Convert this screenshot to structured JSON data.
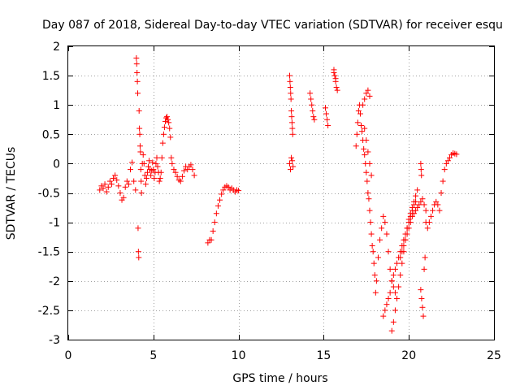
{
  "chart_data": {
    "type": "scatter",
    "title": "Day 087 of 2018, Sidereal Day-to-day VTEC variation (SDTVAR) for receiver esqu",
    "xlabel": "GPS time / hours",
    "ylabel": "SDTVAR / TECUs",
    "xlim": [
      0,
      25
    ],
    "ylim": [
      -3,
      2
    ],
    "xticks": [
      0,
      5,
      10,
      15,
      20,
      25
    ],
    "xtick_labels": [
      "0",
      "5",
      "10",
      "15",
      "20",
      "25"
    ],
    "yticks": [
      2,
      1.5,
      1,
      0.5,
      0,
      -0.5,
      -1,
      -1.5,
      -2,
      -2.5,
      -3
    ],
    "ytick_labels": [
      "2",
      "1.5",
      "1",
      "0.5",
      "0",
      "-0.5",
      "-1",
      "-1.5",
      "-2",
      "-2.5",
      "-3"
    ],
    "grid": true,
    "marker": "+",
    "marker_color": "#ff0000",
    "series": [
      {
        "name": "SDTVAR",
        "x": [
          1.85,
          1.95,
          2.05,
          2.15,
          2.25,
          2.35,
          2.45,
          2.55,
          2.65,
          2.75,
          2.85,
          2.95,
          3.05,
          3.15,
          3.25,
          3.35,
          3.45,
          3.55,
          3.65,
          3.75,
          3.85,
          3.95,
          4.0,
          4.02,
          4.04,
          4.06,
          4.08,
          4.1,
          4.12,
          4.14,
          4.16,
          4.18,
          4.2,
          4.22,
          4.24,
          4.26,
          4.28,
          4.3,
          4.35,
          4.4,
          4.45,
          4.5,
          4.55,
          4.6,
          4.65,
          4.7,
          4.75,
          4.8,
          4.85,
          4.9,
          4.95,
          5.0,
          5.05,
          5.1,
          5.15,
          5.2,
          5.25,
          5.3,
          5.35,
          5.4,
          5.45,
          5.5,
          5.55,
          5.6,
          5.65,
          5.7,
          5.75,
          5.8,
          5.85,
          5.9,
          5.95,
          6.0,
          6.05,
          6.1,
          6.2,
          6.3,
          6.4,
          6.5,
          6.6,
          6.7,
          6.8,
          6.9,
          7.0,
          7.1,
          7.2,
          7.3,
          7.4,
          8.2,
          8.3,
          8.4,
          8.5,
          8.6,
          8.7,
          8.8,
          8.9,
          9.0,
          9.1,
          9.2,
          9.3,
          9.4,
          9.5,
          9.6,
          9.7,
          9.8,
          9.9,
          10.0,
          13.0,
          13.02,
          13.04,
          13.06,
          13.08,
          13.1,
          13.12,
          13.14,
          13.16,
          13.18,
          13.0,
          13.05,
          13.1,
          13.15,
          13.2,
          14.2,
          14.25,
          14.3,
          14.35,
          14.4,
          14.45,
          15.1,
          15.15,
          15.2,
          15.25,
          15.6,
          15.65,
          15.7,
          15.75,
          15.8,
          15.6,
          15.7,
          16.9,
          16.95,
          17.0,
          17.05,
          17.1,
          17.15,
          17.2,
          17.25,
          17.3,
          17.35,
          17.4,
          17.45,
          17.5,
          17.55,
          17.6,
          17.65,
          17.7,
          17.75,
          17.8,
          17.85,
          17.9,
          17.95,
          18.0,
          18.05,
          17.3,
          17.4,
          17.5,
          17.6,
          17.7,
          17.4,
          17.5,
          17.6,
          17.7,
          17.8,
          18.1,
          18.2,
          18.3,
          18.4,
          18.5,
          18.6,
          18.7,
          18.8,
          18.9,
          19.0,
          19.1,
          19.2,
          18.5,
          18.6,
          18.7,
          18.8,
          18.9,
          19.0,
          19.1,
          19.2,
          19.3,
          19.4,
          19.5,
          19.6,
          19.7,
          19.8,
          19.9,
          20.0,
          20.1,
          20.2,
          20.3,
          20.4,
          19.0,
          19.1,
          19.2,
          19.3,
          19.4,
          19.5,
          19.6,
          19.7,
          19.8,
          19.9,
          20.0,
          20.1,
          20.2,
          20.3,
          20.4,
          20.5,
          19.5,
          19.6,
          19.7,
          19.8,
          19.9,
          20.0,
          20.1,
          20.2,
          20.3,
          20.4,
          20.5,
          20.6,
          20.7,
          20.8,
          20.9,
          21.0,
          20.7,
          20.75,
          20.8,
          20.85,
          20.9,
          20.95,
          20.7,
          20.72,
          20.74,
          21.0,
          21.1,
          21.2,
          21.3,
          21.4,
          21.5,
          21.6,
          21.7,
          21.8,
          21.9,
          22.0,
          22.1,
          22.2,
          22.3,
          22.4,
          22.5,
          22.6,
          22.7,
          22.8
        ],
        "y": [
          -0.45,
          -0.38,
          -0.42,
          -0.35,
          -0.48,
          -0.4,
          -0.3,
          -0.35,
          -0.25,
          -0.2,
          -0.28,
          -0.38,
          -0.5,
          -0.62,
          -0.58,
          -0.4,
          -0.3,
          -0.35,
          -0.1,
          0.02,
          -0.3,
          -0.45,
          1.8,
          1.7,
          1.55,
          1.4,
          1.2,
          -1.1,
          -1.5,
          -1.6,
          0.9,
          0.6,
          0.5,
          0.3,
          0.2,
          -0.1,
          -0.3,
          -0.5,
          0.0,
          0.15,
          0.0,
          -0.2,
          -0.35,
          -0.25,
          -0.15,
          -0.05,
          0.05,
          -0.1,
          -0.2,
          -0.12,
          0.02,
          -0.1,
          -0.25,
          -0.15,
          0.0,
          0.1,
          -0.05,
          -0.15,
          -0.3,
          -0.25,
          -0.15,
          0.1,
          0.35,
          0.5,
          0.62,
          0.72,
          0.78,
          0.8,
          0.75,
          0.7,
          0.6,
          0.45,
          0.1,
          0.0,
          -0.1,
          -0.15,
          -0.22,
          -0.28,
          -0.3,
          -0.22,
          -0.12,
          -0.05,
          -0.1,
          -0.05,
          -0.02,
          -0.1,
          -0.2,
          -1.35,
          -1.3,
          -1.3,
          -1.15,
          -1.0,
          -0.85,
          -0.72,
          -0.62,
          -0.52,
          -0.45,
          -0.4,
          -0.38,
          -0.4,
          -0.45,
          -0.42,
          -0.45,
          -0.48,
          -0.45,
          -0.46,
          1.5,
          1.4,
          1.3,
          1.2,
          1.1,
          0.9,
          0.8,
          0.7,
          0.6,
          0.5,
          0.0,
          -0.1,
          0.1,
          0.05,
          -0.05,
          1.2,
          1.1,
          1.0,
          0.9,
          0.8,
          0.75,
          0.95,
          0.85,
          0.75,
          0.65,
          1.6,
          1.5,
          1.4,
          1.3,
          1.25,
          1.55,
          1.45,
          0.3,
          0.5,
          0.7,
          0.9,
          1.0,
          0.85,
          0.65,
          0.55,
          0.4,
          0.25,
          0.15,
          0.0,
          -0.15,
          -0.3,
          -0.5,
          -0.6,
          -0.8,
          -1.0,
          -1.2,
          -1.4,
          -1.5,
          -1.7,
          -1.9,
          -2.2,
          1.0,
          1.1,
          1.2,
          1.25,
          1.15,
          0.6,
          0.4,
          0.2,
          0.0,
          -0.2,
          -2.0,
          -1.6,
          -1.3,
          -1.1,
          -0.9,
          -1.0,
          -1.2,
          -1.5,
          -1.8,
          -2.0,
          -2.1,
          -2.2,
          -2.6,
          -2.5,
          -2.4,
          -2.3,
          -2.2,
          -2.0,
          -1.9,
          -1.8,
          -1.7,
          -1.6,
          -1.5,
          -1.4,
          -1.3,
          -1.2,
          -1.1,
          -1.0,
          -0.9,
          -0.8,
          -0.7,
          -0.65,
          -2.85,
          -2.7,
          -2.5,
          -2.3,
          -2.1,
          -1.9,
          -1.7,
          -1.5,
          -1.3,
          -1.1,
          -0.95,
          -0.85,
          -0.75,
          -0.65,
          -0.55,
          -0.45,
          -1.6,
          -1.5,
          -1.4,
          -1.3,
          -1.2,
          -1.1,
          -1.0,
          -0.9,
          -0.85,
          -0.8,
          -0.75,
          -0.7,
          -0.65,
          -0.6,
          -0.7,
          -0.8,
          -2.15,
          -2.3,
          -2.45,
          -2.6,
          -1.8,
          -1.6,
          0.0,
          -0.1,
          -0.2,
          -1.0,
          -1.1,
          -1.0,
          -0.9,
          -0.8,
          -0.7,
          -0.65,
          -0.7,
          -0.8,
          -0.5,
          -0.3,
          -0.1,
          0.0,
          0.05,
          0.1,
          0.15,
          0.18,
          0.17,
          0.16
        ]
      }
    ]
  }
}
